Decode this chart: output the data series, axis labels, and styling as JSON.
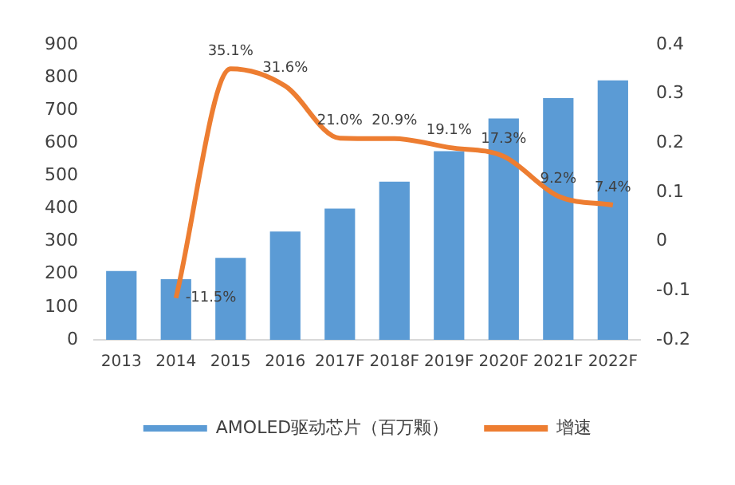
{
  "chart_data": {
    "type": "bar",
    "categories": [
      "2013",
      "2014",
      "2015",
      "2016",
      "2017F",
      "2018F",
      "2019F",
      "2020F",
      "2021F",
      "2022F"
    ],
    "series": [
      {
        "name": "AMOLED驱动芯片（百万颗）",
        "color": "#5b9bd5",
        "values": [
          210,
          185,
          250,
          330,
          400,
          482,
          575,
          675,
          737,
          791
        ]
      },
      {
        "name": "增速",
        "type": "line",
        "axis": "y2",
        "color": "#ed7d31",
        "values": [
          null,
          -0.115,
          0.351,
          0.316,
          0.21,
          0.209,
          0.191,
          0.173,
          0.092,
          0.074
        ],
        "value_labels": [
          null,
          "-11.5%",
          "35.1%",
          "31.6%",
          "21.0%",
          "20.9%",
          "19.1%",
          "17.3%",
          "9.2%",
          "7.4%"
        ]
      }
    ],
    "ylim": [
      0,
      900
    ],
    "yticks": [
      0,
      100,
      200,
      300,
      400,
      500,
      600,
      700,
      800,
      900
    ],
    "y2lim": [
      -0.2,
      0.4
    ],
    "y2ticks": [
      -0.2,
      -0.1,
      0,
      0.1,
      0.2,
      0.3,
      0.4
    ],
    "grid": false,
    "legend": "bottom",
    "marker": "none"
  }
}
